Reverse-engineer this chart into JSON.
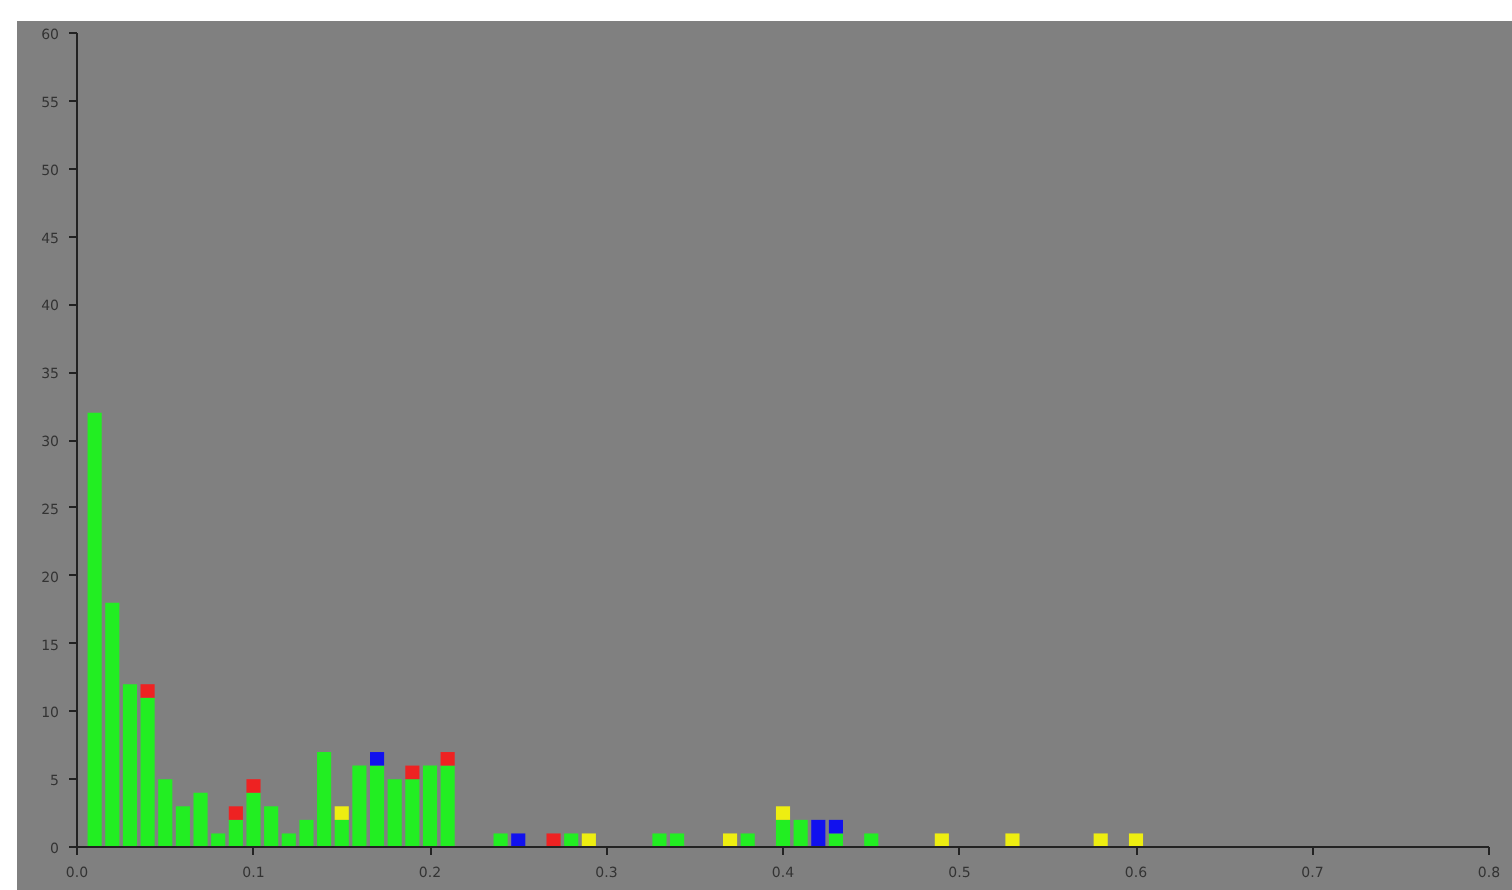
{
  "chart_data": {
    "type": "bar",
    "stacked": true,
    "x": [
      0.01,
      0.02,
      0.03,
      0.04,
      0.05,
      0.06,
      0.07,
      0.08,
      0.09,
      0.1,
      0.11,
      0.12,
      0.13,
      0.14,
      0.15,
      0.16,
      0.17,
      0.18,
      0.19,
      0.2,
      0.21,
      0.24,
      0.25,
      0.27,
      0.28,
      0.29,
      0.33,
      0.34,
      0.37,
      0.38,
      0.4,
      0.41,
      0.42,
      0.43,
      0.45,
      0.49,
      0.53,
      0.58,
      0.6
    ],
    "series": [
      {
        "color": "#22ee22",
        "values": [
          32,
          18,
          12,
          11,
          5,
          3,
          4,
          1,
          2,
          4,
          3,
          1,
          2,
          7,
          2,
          6,
          6,
          5,
          5,
          6,
          6,
          1,
          null,
          null,
          1,
          null,
          1,
          1,
          null,
          1,
          2,
          2,
          null,
          1,
          1,
          null,
          null,
          null,
          null
        ]
      },
      {
        "color": "#ee2222",
        "values": [
          null,
          null,
          null,
          1,
          null,
          null,
          null,
          null,
          1,
          1,
          null,
          null,
          null,
          null,
          null,
          null,
          null,
          null,
          1,
          null,
          1,
          null,
          null,
          1,
          null,
          null,
          null,
          null,
          null,
          null,
          null,
          null,
          null,
          null,
          null,
          null,
          null,
          null,
          null
        ]
      },
      {
        "color": "#1111ee",
        "values": [
          null,
          null,
          null,
          null,
          null,
          null,
          null,
          null,
          null,
          null,
          null,
          null,
          null,
          null,
          null,
          null,
          1,
          null,
          null,
          null,
          null,
          null,
          1,
          null,
          null,
          null,
          null,
          null,
          null,
          null,
          null,
          null,
          2,
          1,
          null,
          null,
          null,
          null,
          null
        ]
      },
      {
        "color": "#eeee11",
        "values": [
          null,
          null,
          null,
          null,
          null,
          null,
          null,
          null,
          null,
          null,
          null,
          null,
          null,
          null,
          1,
          null,
          null,
          null,
          null,
          null,
          null,
          null,
          null,
          null,
          null,
          1,
          null,
          null,
          1,
          null,
          1,
          null,
          null,
          null,
          null,
          1,
          1,
          1,
          1
        ]
      }
    ],
    "xlim": [
      0,
      0.8
    ],
    "xticks": [
      {
        "value": 0,
        "label": "0.0"
      },
      {
        "value": 0.1,
        "label": "0.1"
      },
      {
        "value": 0.2,
        "label": "0.2"
      },
      {
        "value": 0.3,
        "label": "0.3"
      },
      {
        "value": 0.4,
        "label": "0.4"
      },
      {
        "value": 0.5,
        "label": "0.5"
      },
      {
        "value": 0.6,
        "label": "0.6"
      },
      {
        "value": 0.7,
        "label": "0.7"
      },
      {
        "value": 0.8,
        "label": "0.8"
      }
    ],
    "ylim": [
      0,
      60
    ],
    "yticks": [
      0,
      5,
      10,
      15,
      20,
      25,
      30,
      35,
      40,
      45,
      50,
      55,
      60
    ],
    "grid": false
  }
}
